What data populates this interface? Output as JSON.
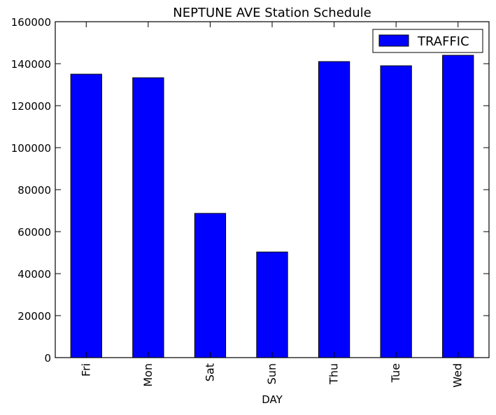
{
  "chart_data": {
    "type": "bar",
    "title": "NEPTUNE AVE Station Schedule",
    "xlabel": "DAY",
    "ylabel": "",
    "categories": [
      "Fri",
      "Mon",
      "Sat",
      "Sun",
      "Thu",
      "Tue",
      "Wed"
    ],
    "series": [
      {
        "name": "TRAFFIC",
        "values": [
          135000,
          133300,
          68700,
          50300,
          141000,
          139000,
          144000
        ],
        "color": "#0000ff"
      }
    ],
    "ylim": [
      0,
      160000
    ],
    "yticks": [
      0,
      20000,
      40000,
      60000,
      80000,
      100000,
      120000,
      140000,
      160000
    ],
    "grid": false,
    "legend_position": "top-right"
  }
}
